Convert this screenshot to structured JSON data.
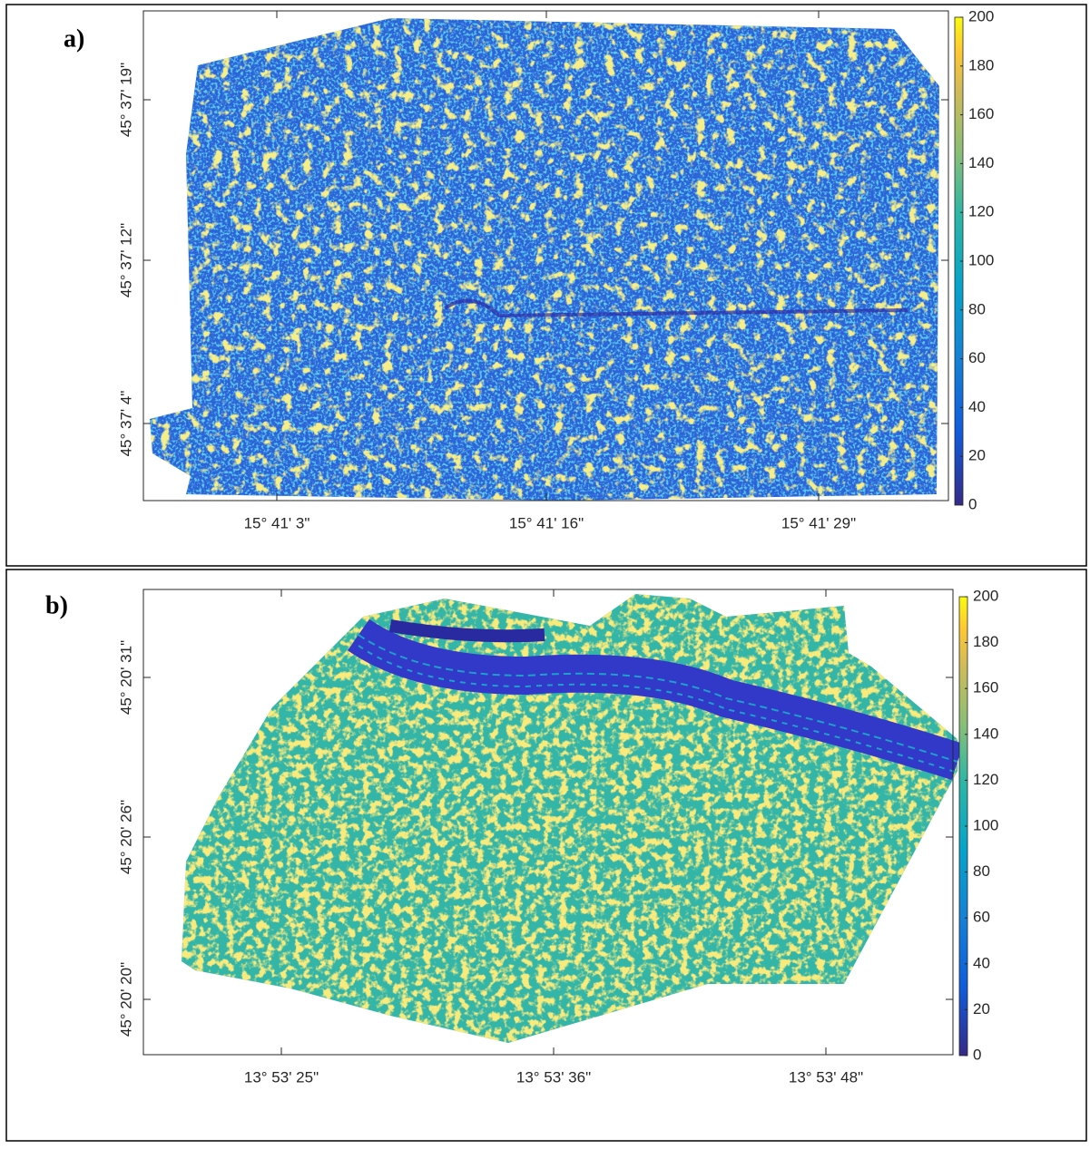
{
  "panels": [
    {
      "label": "a)",
      "x_tick_labels": [
        "15° 41' 3\"",
        "15° 41' 16\"",
        "15° 41' 29\""
      ],
      "y_tick_labels": [
        "45° 37' 19\"",
        "45° 37' 12\"",
        "45° 37' 4\""
      ],
      "colorbar": {
        "lim": [
          0,
          200
        ],
        "ticks": [
          0,
          20,
          40,
          60,
          80,
          100,
          120,
          140,
          160,
          180,
          200
        ]
      }
    },
    {
      "label": "b)",
      "x_tick_labels": [
        "13° 53' 25\"",
        "13° 53' 36\"",
        "13° 53' 48\""
      ],
      "y_tick_labels": [
        "45° 20' 31\"",
        "45° 20' 26\"",
        "45° 20' 20\""
      ],
      "colorbar": {
        "lim": [
          0,
          200
        ],
        "ticks": [
          0,
          20,
          40,
          60,
          80,
          100,
          120,
          140,
          160,
          180,
          200
        ]
      }
    }
  ]
}
